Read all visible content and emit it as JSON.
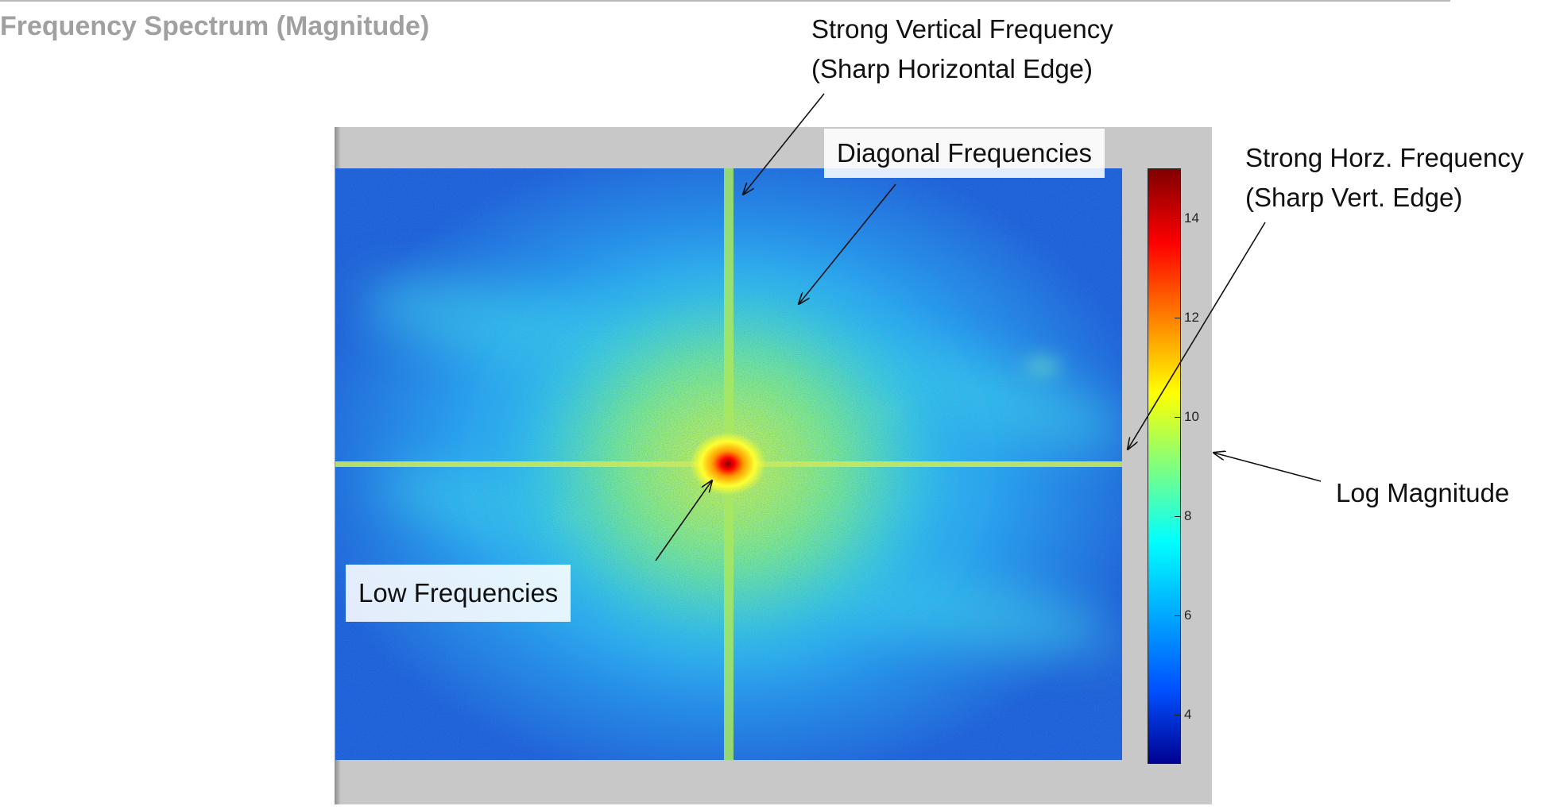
{
  "title": "Frequency Spectrum (Magnitude)",
  "annotations": {
    "vertical_line1": "Strong Vertical Frequency",
    "vertical_line2": "(Sharp Horizontal Edge)",
    "diagonal": "Diagonal Frequencies",
    "horizontal_line1": "Strong Horz. Frequency",
    "horizontal_line2": "(Sharp Vert. Edge)",
    "log_magnitude": "Log Magnitude",
    "low": "Low Frequencies"
  },
  "colorbar": {
    "ticks": [
      "14",
      "12",
      "10",
      "8",
      "6",
      "4"
    ],
    "range": [
      3,
      15
    ]
  },
  "colors": {
    "dark_blue": "#00008f",
    "blue": "#0050ff",
    "cyan": "#00ffff",
    "yellow": "#ffff00",
    "orange": "#ff8000",
    "red": "#ff0000",
    "dark_red": "#800000"
  }
}
